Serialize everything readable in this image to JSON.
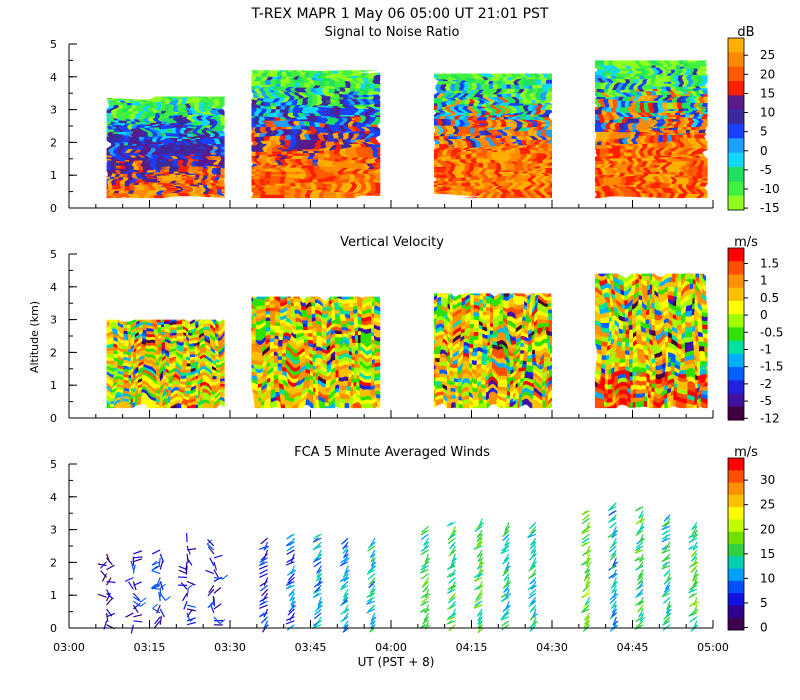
{
  "figure_title": "T-REX   MAPR   1 May 06   05:00 UT   21:01   PST",
  "y_axis_label": "Altitude (km)",
  "x_axis_label": "UT  (PST + 8)",
  "chart_data": [
    {
      "type": "heatmap",
      "title": "Signal to Noise Ratio",
      "unit": "dB",
      "xlabel": "UT  (PST + 8)",
      "ylabel": "Altitude (km)",
      "xlim": [
        "03:00",
        "05:00"
      ],
      "ylim": [
        0,
        5
      ],
      "yticks": [
        0,
        1,
        2,
        3,
        4,
        5
      ],
      "colorbar": {
        "labels": [
          "25",
          "20",
          "15",
          "10",
          "5",
          "0",
          "-5",
          "-10",
          "-15"
        ],
        "colors": [
          "#ffb000",
          "#ff8a00",
          "#ff5a00",
          "#ff2000",
          "#5a1a8a",
          "#3a2aa0",
          "#1a40ff",
          "#1aa0ff",
          "#10d8ff",
          "#20e060",
          "#40f040",
          "#90ff20"
        ]
      },
      "data_segments": [
        {
          "start": "03:07",
          "end": "03:29",
          "top_km": 3.4
        },
        {
          "start": "03:34",
          "end": "03:58",
          "top_km": 4.2
        },
        {
          "start": "04:08",
          "end": "04:30",
          "top_km": 4.1
        },
        {
          "start": "04:38",
          "end": "04:59",
          "top_km": 4.5
        }
      ]
    },
    {
      "type": "heatmap",
      "title": "Vertical Velocity",
      "unit": "m/s",
      "xlabel": "UT  (PST + 8)",
      "ylabel": "Altitude (km)",
      "xlim": [
        "03:00",
        "05:00"
      ],
      "ylim": [
        0,
        5
      ],
      "yticks": [
        0,
        1,
        2,
        3,
        4,
        5
      ],
      "colorbar": {
        "labels": [
          "1.5",
          "1",
          "0.5",
          "0",
          "-0.5",
          "-1",
          "-1.5",
          "-2",
          "-5",
          "-12"
        ],
        "colors": [
          "#ff0000",
          "#ff5000",
          "#ff9000",
          "#ffc000",
          "#ffff00",
          "#a0ff00",
          "#30e000",
          "#00e0a0",
          "#00b0ff",
          "#0060ff",
          "#2020e0",
          "#4010a0",
          "#400040"
        ]
      },
      "data_segments": [
        {
          "start": "03:07",
          "end": "03:29",
          "top_km": 3.0
        },
        {
          "start": "03:34",
          "end": "03:58",
          "top_km": 3.7
        },
        {
          "start": "04:08",
          "end": "04:30",
          "top_km": 3.8
        },
        {
          "start": "04:38",
          "end": "04:59",
          "top_km": 4.4
        }
      ]
    },
    {
      "type": "scatter",
      "title": "FCA 5 Minute Averaged Winds",
      "unit": "m/s",
      "xlabel": "UT  (PST + 8)",
      "ylabel": "Altitude (km)",
      "xlim": [
        "03:00",
        "05:00"
      ],
      "ylim": [
        0,
        5
      ],
      "yticks": [
        0,
        1,
        2,
        3,
        4,
        5
      ],
      "xticks": [
        "03:00",
        "03:15",
        "03:30",
        "03:45",
        "04:00",
        "04:15",
        "04:30",
        "04:45",
        "05:00"
      ],
      "colorbar": {
        "labels": [
          "30",
          "25",
          "20",
          "15",
          "10",
          "5",
          "0"
        ],
        "colors": [
          "#ff0000",
          "#ff5000",
          "#ff9000",
          "#ffc000",
          "#ffff00",
          "#c0ff00",
          "#70e000",
          "#30d040",
          "#00d0b0",
          "#00a0ff",
          "#0050ff",
          "#1010e0",
          "#300090",
          "#400050"
        ]
      },
      "barb_times": [
        "03:07",
        "03:12",
        "03:17",
        "03:22",
        "03:27",
        "03:37",
        "03:42",
        "03:47",
        "03:52",
        "03:57",
        "04:07",
        "04:12",
        "04:17",
        "04:22",
        "04:27",
        "04:37",
        "04:42",
        "04:47",
        "04:52",
        "04:57"
      ],
      "barb_tops_km": [
        2.4,
        2.4,
        2.5,
        2.7,
        2.6,
        2.9,
        3.0,
        3.0,
        2.8,
        2.8,
        3.2,
        3.3,
        3.4,
        3.3,
        3.3,
        3.7,
        3.9,
        3.8,
        3.6,
        3.3
      ],
      "barb_speed_ms": [
        3,
        4,
        5,
        4,
        4,
        5,
        7,
        9,
        9,
        11,
        13,
        14,
        14,
        12,
        12,
        15,
        10,
        13,
        12,
        14
      ]
    }
  ]
}
